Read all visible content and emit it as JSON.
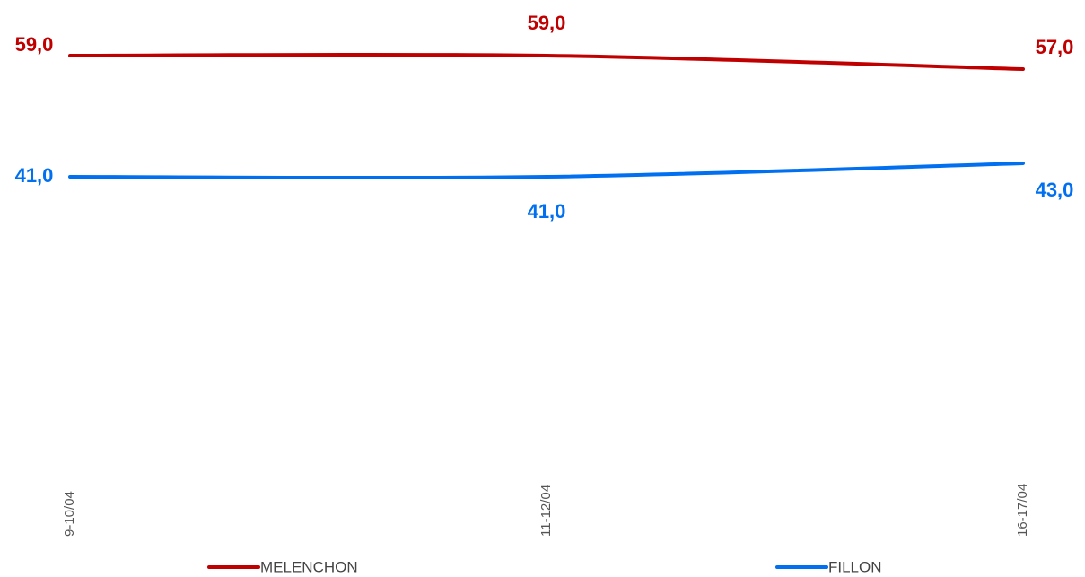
{
  "chart_data": {
    "type": "line",
    "categories": [
      "9-10/04",
      "11-12/04",
      "16-17/04"
    ],
    "series": [
      {
        "name": "MELENCHON",
        "color": "#c00000",
        "values": [
          59,
          59,
          57
        ],
        "value_labels": [
          "59,0",
          "59,0",
          "57,0"
        ]
      },
      {
        "name": "FILLON",
        "color": "#0070f0",
        "values": [
          41,
          41,
          43
        ],
        "value_labels": [
          "41,0",
          "41,0",
          "43,0"
        ]
      }
    ],
    "ylim": [
      0,
      60
    ],
    "grid": false,
    "legend": "bottom"
  }
}
